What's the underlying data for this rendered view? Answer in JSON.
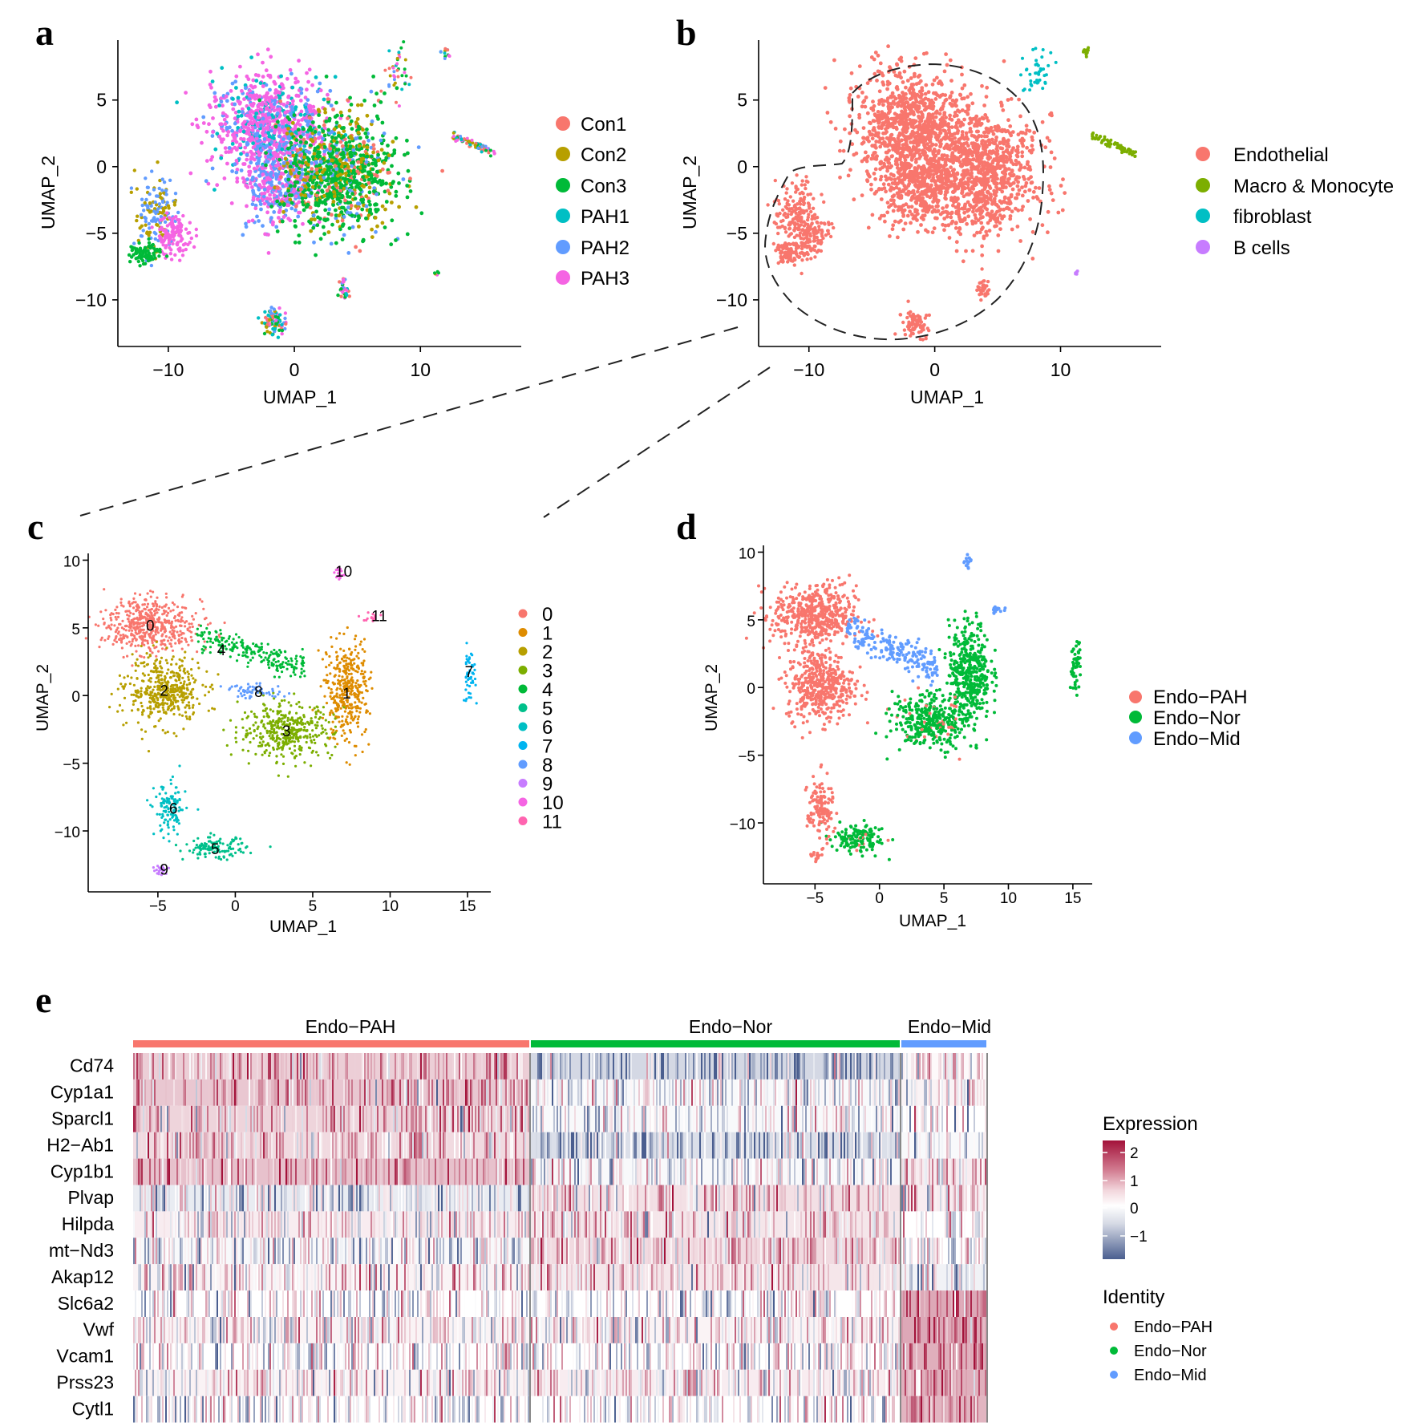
{
  "chart_data": [
    {
      "panel": "a",
      "type": "scatter",
      "xlabel": "UMAP_1",
      "ylabel": "UMAP_2",
      "xticks": [
        -10,
        0,
        10
      ],
      "yticks": [
        5,
        0,
        -5,
        -10
      ],
      "xlim": [
        -14,
        18
      ],
      "ylim": [
        -13.5,
        9.5
      ],
      "series": [
        {
          "name": "Con1",
          "color": "#F8766D"
        },
        {
          "name": "Con2",
          "color": "#B79F00"
        },
        {
          "name": "Con3",
          "color": "#00BA38"
        },
        {
          "name": "PAH1",
          "color": "#00BFC4"
        },
        {
          "name": "PAH2",
          "color": "#619CFF"
        },
        {
          "name": "PAH3",
          "color": "#F564E3"
        }
      ]
    },
    {
      "panel": "b",
      "type": "scatter",
      "xlabel": "UMAP_1",
      "ylabel": "UMAP_2",
      "xticks": [
        -10,
        0,
        10
      ],
      "yticks": [
        5,
        0,
        -5,
        -10
      ],
      "xlim": [
        -14,
        18
      ],
      "ylim": [
        -13.5,
        9.5
      ],
      "series": [
        {
          "name": "Endothelial",
          "color": "#F8766D"
        },
        {
          "name": "Macro & Monocyte",
          "color": "#7CAE00"
        },
        {
          "name": "fibroblast",
          "color": "#00BFC4"
        },
        {
          "name": "B cells",
          "color": "#C77CFF"
        }
      ]
    },
    {
      "panel": "c",
      "type": "scatter",
      "xlabel": "UMAP_1",
      "ylabel": "UMAP_2",
      "xticks": [
        -5,
        0,
        5,
        10,
        15
      ],
      "yticks": [
        10,
        5,
        0,
        -5,
        -10
      ],
      "xlim": [
        -9.5,
        16.5
      ],
      "ylim": [
        -14.5,
        10.5
      ],
      "series": [
        {
          "name": "0",
          "color": "#F8766D"
        },
        {
          "name": "1",
          "color": "#DE8C00"
        },
        {
          "name": "2",
          "color": "#B79F00"
        },
        {
          "name": "3",
          "color": "#7CAE00"
        },
        {
          "name": "4",
          "color": "#00BA38"
        },
        {
          "name": "5",
          "color": "#00C08B"
        },
        {
          "name": "6",
          "color": "#00BFC4"
        },
        {
          "name": "7",
          "color": "#00B4F0"
        },
        {
          "name": "8",
          "color": "#619CFF"
        },
        {
          "name": "9",
          "color": "#C77CFF"
        },
        {
          "name": "10",
          "color": "#F564E3"
        },
        {
          "name": "11",
          "color": "#FF64B0"
        }
      ],
      "cluster_labels": [
        {
          "label": "0",
          "x": -5.5,
          "y": 5.2
        },
        {
          "label": "1",
          "x": 7.2,
          "y": 0.2
        },
        {
          "label": "2",
          "x": -4.6,
          "y": 0.4
        },
        {
          "label": "3",
          "x": 3.3,
          "y": -2.6
        },
        {
          "label": "4",
          "x": -0.9,
          "y": 3.4
        },
        {
          "label": "5",
          "x": -1.3,
          "y": -11.3
        },
        {
          "label": "6",
          "x": -4.0,
          "y": -8.3
        },
        {
          "label": "7",
          "x": 15.1,
          "y": 1.8
        },
        {
          "label": "8",
          "x": 1.5,
          "y": 0.3
        },
        {
          "label": "9",
          "x": -4.6,
          "y": -12.8
        },
        {
          "label": "10",
          "x": 7.0,
          "y": 9.2
        },
        {
          "label": "11",
          "x": 9.3,
          "y": 5.9
        }
      ]
    },
    {
      "panel": "d",
      "type": "scatter",
      "xlabel": "UMAP_1",
      "ylabel": "UMAP_2",
      "xticks": [
        -5,
        0,
        5,
        10,
        15
      ],
      "yticks": [
        10,
        5,
        0,
        -5,
        -10
      ],
      "xlim": [
        -9,
        16.5
      ],
      "ylim": [
        -14.5,
        10.5
      ],
      "series": [
        {
          "name": "Endo−PAH",
          "color": "#F8766D"
        },
        {
          "name": "Endo−Nor",
          "color": "#00BA38"
        },
        {
          "name": "Endo−Mid",
          "color": "#619CFF"
        }
      ]
    },
    {
      "panel": "e",
      "type": "heatmap",
      "groups": [
        {
          "name": "Endo−PAH",
          "color": "#F8766D"
        },
        {
          "name": "Endo−Nor",
          "color": "#00BA38"
        },
        {
          "name": "Endo−Mid",
          "color": "#619CFF"
        }
      ],
      "genes": [
        "Cd74",
        "Cyp1a1",
        "Sparcl1",
        "H2−Ab1",
        "Cyp1b1",
        "Plvap",
        "Hilpda",
        "mt−Nd3",
        "Akap12",
        "Slc6a2",
        "Vwf",
        "Vcam1",
        "Prss23",
        "Cytl1"
      ],
      "mean_expression": [
        [
          0.8,
          -0.6,
          0.1
        ],
        [
          0.9,
          -0.1,
          0.2
        ],
        [
          0.7,
          -0.1,
          0.0
        ],
        [
          0.6,
          -0.5,
          -0.1
        ],
        [
          1.0,
          -0.1,
          0.3
        ],
        [
          -0.3,
          0.5,
          0.3
        ],
        [
          0.3,
          0.4,
          0.0
        ],
        [
          -0.1,
          0.6,
          0.0
        ],
        [
          0.2,
          0.4,
          -0.2
        ],
        [
          0.0,
          0.0,
          1.4
        ],
        [
          0.2,
          0.2,
          1.4
        ],
        [
          0.0,
          0.0,
          1.3
        ],
        [
          0.2,
          0.3,
          1.3
        ],
        [
          0.0,
          0.0,
          1.2
        ]
      ],
      "colorbar_title": "Expression",
      "colorbar_ticks": [
        "2",
        "1",
        "0",
        "−1"
      ],
      "color_low": "#4A5E8F",
      "color_mid": "#FFFFFF",
      "color_high": "#A3123A",
      "identity_title": "Identity"
    }
  ],
  "labels": {
    "a": "a",
    "b": "b",
    "c": "c",
    "d": "d",
    "e": "e",
    "umap1": "UMAP_1",
    "umap2": "UMAP_2"
  },
  "ticks": {
    "ab_x": [
      "−10",
      "0",
      "10"
    ],
    "ab_y": [
      "5",
      "0",
      "−5",
      "−10"
    ],
    "cd_x": [
      "−5",
      "0",
      "5",
      "10",
      "15"
    ],
    "cd_y": [
      "10",
      "5",
      "0",
      "−5",
      "−10"
    ]
  },
  "legends": {
    "a": [
      "Con1",
      "Con2",
      "Con3",
      "PAH1",
      "PAH2",
      "PAH3"
    ],
    "b": [
      "Endothelial",
      "Macro & Monocyte",
      "fibroblast",
      "B cells"
    ],
    "c": [
      "0",
      "1",
      "2",
      "3",
      "4",
      "5",
      "6",
      "7",
      "8",
      "9",
      "10",
      "11"
    ],
    "d": [
      "Endo−PAH",
      "Endo−Nor",
      "Endo−Mid"
    ],
    "e_identity": [
      "Endo−PAH",
      "Endo−Nor",
      "Endo−Mid"
    ]
  },
  "heatmap": {
    "group_labels": [
      "Endo−PAH",
      "Endo−Nor",
      "Endo−Mid"
    ],
    "genes": [
      "Cd74",
      "Cyp1a1",
      "Sparcl1",
      "H2−Ab1",
      "Cyp1b1",
      "Plvap",
      "Hilpda",
      "mt−Nd3",
      "Akap12",
      "Slc6a2",
      "Vwf",
      "Vcam1",
      "Prss23",
      "Cytl1"
    ],
    "expression_title": "Expression",
    "colorbar_ticks": [
      "2",
      "1",
      "0",
      "−1"
    ],
    "identity_title": "Identity"
  }
}
